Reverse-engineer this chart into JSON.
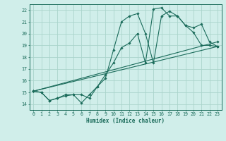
{
  "background_color": "#d0eeea",
  "grid_color": "#aad4cc",
  "line_color": "#1a6b5a",
  "xlabel": "Humidex (Indice chaleur)",
  "ylim": [
    13.5,
    22.5
  ],
  "xlim": [
    -0.5,
    23.5
  ],
  "yticks": [
    14,
    15,
    16,
    17,
    18,
    19,
    20,
    21,
    22
  ],
  "xticks": [
    0,
    1,
    2,
    3,
    4,
    5,
    6,
    7,
    8,
    9,
    10,
    11,
    12,
    13,
    14,
    15,
    16,
    17,
    18,
    19,
    20,
    21,
    22,
    23
  ],
  "series": [
    {
      "x": [
        0,
        1,
        2,
        3,
        4,
        5,
        6,
        7,
        8,
        9,
        10,
        11,
        12,
        13,
        14,
        15,
        16,
        17,
        18,
        19,
        20,
        21,
        22,
        23
      ],
      "y": [
        15.1,
        15.0,
        14.3,
        14.5,
        14.7,
        14.8,
        14.1,
        14.8,
        15.5,
        16.2,
        18.6,
        21.0,
        21.5,
        21.7,
        20.0,
        17.5,
        21.5,
        21.9,
        21.5,
        20.7,
        20.5,
        20.8,
        19.3,
        18.9
      ]
    },
    {
      "x": [
        0,
        1,
        2,
        3,
        4,
        5,
        6,
        7,
        8,
        9,
        10,
        11,
        12,
        13,
        14,
        15,
        16,
        17,
        18,
        19,
        20,
        21,
        22,
        23
      ],
      "y": [
        15.1,
        15.0,
        14.3,
        14.5,
        14.8,
        14.8,
        14.8,
        14.5,
        15.5,
        16.5,
        17.5,
        18.8,
        19.2,
        20.0,
        17.5,
        22.1,
        22.2,
        21.5,
        21.5,
        20.7,
        20.1,
        19.0,
        19.0,
        18.9
      ]
    },
    {
      "x": [
        0,
        23
      ],
      "y": [
        15.1,
        18.9
      ]
    },
    {
      "x": [
        0,
        23
      ],
      "y": [
        15.1,
        19.3
      ]
    }
  ]
}
